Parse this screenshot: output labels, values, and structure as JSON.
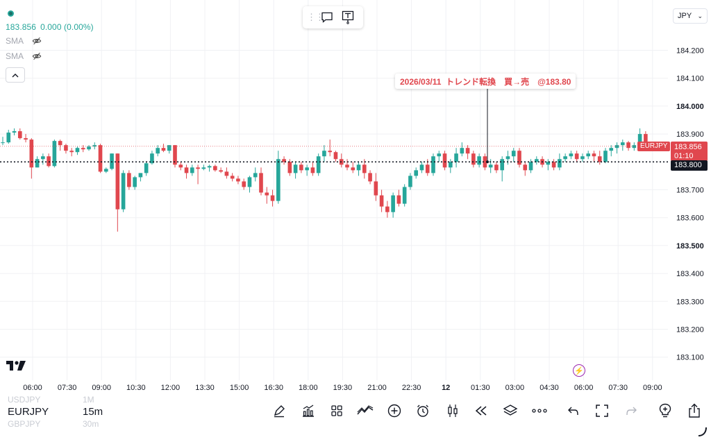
{
  "header": {
    "price_readout": "183.856",
    "change_readout": "0.000 (0.00%)",
    "indicators": [
      {
        "label": "SMA",
        "icon": "eye-off-icon"
      },
      {
        "label": "SMA",
        "icon": "eye-off-icon"
      }
    ]
  },
  "currency_select": {
    "value": "JPY"
  },
  "annotation": {
    "text": "2026/03/11  トレンド転換　買→売　@183.80",
    "x_time": "2026-03-12 01:40",
    "price": 183.8
  },
  "price_tags": {
    "symbol": "EURJPY",
    "current_price": "183.856",
    "countdown": "01:10",
    "alert_price": "183.800"
  },
  "chart_data": {
    "type": "candlestick",
    "symbol": "EURJPY",
    "interval": "15m",
    "y_axis": {
      "ticks": [
        "184.200",
        "184.100",
        "184.000",
        "183.900",
        "183.800",
        "183.700",
        "183.600",
        "183.500",
        "183.400",
        "183.300",
        "183.200",
        "183.100"
      ],
      "tick_values": [
        184.2,
        184.1,
        184.0,
        183.9,
        183.8,
        183.7,
        183.6,
        183.5,
        183.4,
        183.3,
        183.2,
        183.1
      ],
      "bold_ticks": [
        "184.000",
        "183.500"
      ],
      "range": [
        183.04,
        184.26
      ]
    },
    "x_axis": {
      "ticks": [
        "06:00",
        "07:30",
        "09:00",
        "10:30",
        "12:00",
        "13:30",
        "15:00",
        "16:30",
        "18:00",
        "19:30",
        "21:00",
        "22:30",
        "12",
        "01:30",
        "03:00",
        "04:30",
        "06:00",
        "07:30",
        "09:00"
      ],
      "bold_ticks": [
        "12"
      ]
    },
    "current_price_line": 183.856,
    "alert_line": 183.8,
    "colors": {
      "up": "#26a69a",
      "down": "#e0474e",
      "grid": "#f0f1f4",
      "text": "#131722"
    },
    "candles": [
      [
        183.87,
        183.89,
        183.86,
        183.87
      ],
      [
        183.87,
        183.915,
        183.865,
        183.905
      ],
      [
        183.905,
        183.92,
        183.895,
        183.91
      ],
      [
        183.91,
        183.92,
        183.88,
        183.885
      ],
      [
        183.885,
        183.9,
        183.87,
        183.88
      ],
      [
        183.88,
        183.885,
        183.74,
        183.78
      ],
      [
        183.78,
        183.82,
        183.78,
        183.81
      ],
      [
        183.81,
        183.83,
        183.79,
        183.82
      ],
      [
        183.82,
        183.83,
        183.78,
        183.785
      ],
      [
        183.785,
        183.88,
        183.78,
        183.875
      ],
      [
        183.875,
        183.88,
        183.84,
        183.86
      ],
      [
        183.86,
        183.865,
        183.83,
        183.84
      ],
      [
        183.84,
        183.85,
        183.82,
        183.835
      ],
      [
        183.835,
        183.855,
        183.825,
        183.85
      ],
      [
        183.85,
        183.86,
        183.835,
        183.845
      ],
      [
        183.845,
        183.86,
        183.84,
        183.855
      ],
      [
        183.855,
        183.87,
        183.845,
        183.86
      ],
      [
        183.86,
        183.865,
        183.76,
        183.765
      ],
      [
        183.765,
        183.78,
        183.76,
        183.775
      ],
      [
        183.775,
        183.83,
        183.77,
        183.83
      ],
      [
        183.83,
        183.83,
        183.55,
        183.63
      ],
      [
        183.63,
        183.77,
        183.62,
        183.76
      ],
      [
        183.76,
        183.77,
        183.7,
        183.71
      ],
      [
        183.71,
        183.75,
        183.7,
        183.745
      ],
      [
        183.745,
        183.76,
        183.73,
        183.76
      ],
      [
        183.76,
        183.8,
        183.75,
        183.795
      ],
      [
        183.795,
        183.84,
        183.79,
        183.83
      ],
      [
        183.83,
        183.86,
        183.82,
        183.85
      ],
      [
        183.85,
        183.865,
        183.835,
        183.84
      ],
      [
        183.84,
        183.86,
        183.83,
        183.86
      ],
      [
        183.86,
        183.86,
        183.78,
        183.79
      ],
      [
        183.79,
        183.8,
        183.77,
        183.78
      ],
      [
        183.78,
        183.79,
        183.74,
        183.76
      ],
      [
        183.76,
        183.79,
        183.75,
        183.78
      ],
      [
        183.78,
        183.79,
        183.72,
        183.775
      ],
      [
        183.775,
        183.79,
        183.77,
        183.78
      ],
      [
        183.78,
        183.79,
        183.765,
        183.785
      ],
      [
        183.785,
        183.79,
        183.765,
        183.77
      ],
      [
        183.77,
        183.78,
        183.76,
        183.765
      ],
      [
        183.765,
        183.78,
        183.74,
        183.75
      ],
      [
        183.75,
        183.76,
        183.73,
        183.74
      ],
      [
        183.74,
        183.75,
        183.72,
        183.73
      ],
      [
        183.73,
        183.74,
        183.7,
        183.71
      ],
      [
        183.71,
        183.75,
        183.69,
        183.745
      ],
      [
        183.745,
        183.78,
        183.73,
        183.76
      ],
      [
        183.76,
        183.78,
        183.68,
        183.69
      ],
      [
        183.69,
        183.71,
        183.65,
        183.68
      ],
      [
        183.68,
        183.7,
        183.64,
        183.66
      ],
      [
        183.66,
        183.84,
        183.65,
        183.81
      ],
      [
        183.81,
        183.82,
        183.79,
        183.8
      ],
      [
        183.8,
        183.81,
        183.75,
        183.76
      ],
      [
        183.76,
        183.8,
        183.74,
        183.79
      ],
      [
        183.79,
        183.8,
        183.76,
        183.77
      ],
      [
        183.77,
        183.79,
        183.75,
        183.78
      ],
      [
        183.78,
        183.8,
        183.75,
        183.76
      ],
      [
        183.76,
        183.83,
        183.75,
        183.82
      ],
      [
        183.82,
        183.86,
        183.8,
        183.84
      ],
      [
        183.84,
        183.88,
        183.82,
        183.835
      ],
      [
        183.835,
        183.84,
        183.8,
        183.81
      ],
      [
        183.81,
        183.83,
        183.78,
        183.79
      ],
      [
        183.79,
        183.81,
        183.77,
        183.78
      ],
      [
        183.78,
        183.8,
        183.76,
        183.77
      ],
      [
        183.77,
        183.8,
        183.75,
        183.79
      ],
      [
        183.79,
        183.81,
        183.74,
        183.76
      ],
      [
        183.76,
        183.77,
        183.72,
        183.73
      ],
      [
        183.73,
        183.76,
        183.66,
        183.68
      ],
      [
        183.68,
        183.7,
        183.62,
        183.64
      ],
      [
        183.64,
        183.66,
        183.6,
        183.62
      ],
      [
        183.62,
        183.69,
        183.6,
        183.68
      ],
      [
        183.68,
        183.7,
        183.64,
        183.65
      ],
      [
        183.65,
        183.72,
        183.64,
        183.71
      ],
      [
        183.71,
        183.76,
        183.7,
        183.75
      ],
      [
        183.75,
        183.78,
        183.74,
        183.77
      ],
      [
        183.77,
        183.8,
        183.76,
        183.79
      ],
      [
        183.79,
        183.81,
        183.75,
        183.76
      ],
      [
        183.76,
        183.83,
        183.75,
        183.82
      ],
      [
        183.82,
        183.84,
        183.8,
        183.83
      ],
      [
        183.83,
        183.84,
        183.77,
        183.78
      ],
      [
        183.78,
        183.81,
        183.76,
        183.8
      ],
      [
        183.8,
        183.85,
        183.78,
        183.83
      ],
      [
        183.83,
        183.87,
        183.82,
        183.85
      ],
      [
        183.85,
        183.86,
        183.81,
        183.83
      ],
      [
        183.83,
        183.84,
        183.78,
        183.79
      ],
      [
        183.79,
        183.83,
        183.78,
        183.82
      ],
      [
        183.82,
        183.83,
        183.77,
        183.78
      ],
      [
        183.78,
        183.81,
        183.76,
        183.79
      ],
      [
        183.79,
        183.8,
        183.76,
        183.77
      ],
      [
        183.77,
        183.82,
        183.73,
        183.81
      ],
      [
        183.81,
        183.84,
        183.79,
        183.82
      ],
      [
        183.82,
        183.85,
        183.8,
        183.84
      ],
      [
        183.84,
        183.85,
        183.78,
        183.79
      ],
      [
        183.79,
        183.8,
        183.75,
        183.77
      ],
      [
        183.77,
        183.81,
        183.76,
        183.8
      ],
      [
        183.8,
        183.82,
        183.79,
        183.81
      ],
      [
        183.81,
        183.82,
        183.78,
        183.79
      ],
      [
        183.79,
        183.81,
        183.77,
        183.8
      ],
      [
        183.8,
        183.81,
        183.77,
        183.78
      ],
      [
        183.78,
        183.83,
        183.77,
        183.81
      ],
      [
        183.81,
        183.83,
        183.8,
        183.82
      ],
      [
        183.82,
        183.84,
        183.81,
        183.83
      ],
      [
        183.83,
        183.84,
        183.8,
        183.81
      ],
      [
        183.81,
        183.83,
        183.8,
        183.82
      ],
      [
        183.82,
        183.84,
        183.81,
        183.83
      ],
      [
        183.83,
        183.84,
        183.8,
        183.82
      ],
      [
        183.82,
        183.84,
        183.79,
        183.8
      ],
      [
        183.8,
        183.85,
        183.795,
        183.84
      ],
      [
        183.84,
        183.86,
        183.82,
        183.85
      ],
      [
        183.85,
        183.87,
        183.83,
        183.86
      ],
      [
        183.86,
        183.88,
        183.84,
        183.87
      ],
      [
        183.87,
        183.875,
        183.84,
        183.85
      ],
      [
        183.85,
        183.87,
        183.84,
        183.86
      ],
      [
        183.86,
        183.92,
        183.85,
        183.9
      ],
      [
        183.9,
        183.91,
        183.85,
        183.856
      ]
    ]
  },
  "bottom": {
    "symbol_prev": "USDJPY",
    "symbol": "EURJPY",
    "symbol_next": "GBPJPY",
    "timeframe_prev": "1M",
    "timeframe": "15m",
    "timeframe_next": "30m"
  }
}
